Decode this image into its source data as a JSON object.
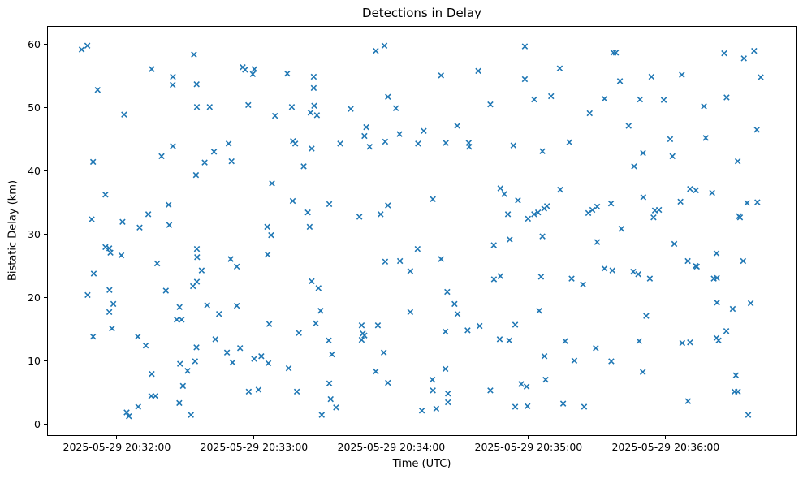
{
  "figure": {
    "title": "Detections in Delay",
    "xlabel": "Time (UTC)",
    "ylabel": "Bistatic Delay (km)"
  },
  "chart_data": {
    "type": "scatter",
    "title": "Detections in Delay",
    "xlabel": "Time (UTC)",
    "ylabel": "Bistatic Delay (km)",
    "legend": "none",
    "grid": false,
    "marker": "x",
    "marker_color": "#1f77b4",
    "x_unit": "seconds relative to 2025-05-29 20:32:00 UTC",
    "xlim": [
      -30.5,
      297.2
    ],
    "ylim": [
      -1.8,
      62.9
    ],
    "xticks": {
      "values": [
        0,
        60,
        120,
        180,
        240
      ],
      "labels": [
        "2025-05-29 20:32:00",
        "2025-05-29 20:33:00",
        "2025-05-29 20:34:00",
        "2025-05-29 20:35:00",
        "2025-05-29 20:36:00"
      ]
    },
    "yticks": {
      "values": [
        0,
        10,
        20,
        30,
        40,
        50,
        60
      ],
      "labels": [
        "0",
        "10",
        "20",
        "30",
        "40",
        "50",
        "60"
      ]
    },
    "points": [
      [
        -15.7,
        59.3
      ],
      [
        -13.2,
        59.9
      ],
      [
        15,
        56.2
      ],
      [
        24.3,
        55.0
      ],
      [
        24.2,
        53.7
      ],
      [
        -8.7,
        52.9
      ],
      [
        2.9,
        49.0
      ],
      [
        24.3,
        44.0
      ],
      [
        19.3,
        42.4
      ],
      [
        -10.7,
        41.5
      ],
      [
        33.5,
        58.5
      ],
      [
        54.9,
        56.5
      ],
      [
        55.9,
        56.1
      ],
      [
        60,
        56.2
      ],
      [
        59.3,
        55.4
      ],
      [
        74.4,
        55.5
      ],
      [
        86,
        55.0
      ],
      [
        86,
        53.2
      ],
      [
        34.7,
        53.8
      ],
      [
        34.8,
        50.2
      ],
      [
        40.4,
        50.2
      ],
      [
        57.3,
        50.5
      ],
      [
        76.4,
        50.2
      ],
      [
        69,
        48.8
      ],
      [
        86.2,
        50.4
      ],
      [
        84.6,
        49.3
      ],
      [
        87.4,
        48.9
      ],
      [
        76.9,
        44.8
      ],
      [
        77.9,
        44.4
      ],
      [
        85.1,
        43.6
      ],
      [
        48.7,
        44.4
      ],
      [
        42.3,
        43.1
      ],
      [
        97.6,
        44.4
      ],
      [
        38.2,
        41.4
      ],
      [
        50,
        41.6
      ],
      [
        117,
        59.9
      ],
      [
        113.2,
        59.1
      ],
      [
        141.8,
        55.2
      ],
      [
        158.1,
        55.9
      ],
      [
        118.5,
        51.8
      ],
      [
        122,
        50.0
      ],
      [
        102.2,
        49.9
      ],
      [
        163.4,
        50.6
      ],
      [
        109,
        47.0
      ],
      [
        108.2,
        45.6
      ],
      [
        148.9,
        47.2
      ],
      [
        134.2,
        46.4
      ],
      [
        123.6,
        45.9
      ],
      [
        117.3,
        44.7
      ],
      [
        110.5,
        43.9
      ],
      [
        131.7,
        44.4
      ],
      [
        143.9,
        44.5
      ],
      [
        153.9,
        44.5
      ],
      [
        154.1,
        43.9
      ],
      [
        178.5,
        59.8
      ],
      [
        217.3,
        58.8
      ],
      [
        218.4,
        58.8
      ],
      [
        193.8,
        56.3
      ],
      [
        178.5,
        54.6
      ],
      [
        220.2,
        54.3
      ],
      [
        190,
        51.9
      ],
      [
        182.6,
        51.4
      ],
      [
        213.4,
        51.5
      ],
      [
        229,
        51.4
      ],
      [
        206.9,
        49.2
      ],
      [
        224,
        47.2
      ],
      [
        173.5,
        44.1
      ],
      [
        198,
        44.6
      ],
      [
        186.2,
        43.2
      ],
      [
        230.3,
        42.9
      ],
      [
        265.9,
        58.7
      ],
      [
        274.5,
        57.9
      ],
      [
        279,
        59.1
      ],
      [
        234,
        55.0
      ],
      [
        247.3,
        55.3
      ],
      [
        281.9,
        54.9
      ],
      [
        239.4,
        51.3
      ],
      [
        257,
        50.3
      ],
      [
        266.9,
        51.7
      ],
      [
        280.2,
        46.6
      ],
      [
        242.2,
        45.1
      ],
      [
        257.8,
        45.3
      ],
      [
        243.2,
        42.4
      ],
      [
        271.8,
        41.6
      ],
      [
        34.4,
        39.4
      ],
      [
        -5.3,
        36.3
      ],
      [
        22.4,
        34.7
      ],
      [
        -11.3,
        32.4
      ],
      [
        13.5,
        33.2
      ],
      [
        2.2,
        32.0
      ],
      [
        9.7,
        31.1
      ],
      [
        22.7,
        31.5
      ],
      [
        -5.3,
        28.0
      ],
      [
        -3.6,
        27.8
      ],
      [
        -3.1,
        27.1
      ],
      [
        1.7,
        26.7
      ],
      [
        17.4,
        25.4
      ],
      [
        -10.4,
        23.8
      ],
      [
        -3.5,
        21.2
      ],
      [
        21.2,
        21.1
      ],
      [
        -13.1,
        20.4
      ],
      [
        81.6,
        40.8
      ],
      [
        67.7,
        38.1
      ],
      [
        76.8,
        35.3
      ],
      [
        92.8,
        34.8
      ],
      [
        83.4,
        33.5
      ],
      [
        65.6,
        31.2
      ],
      [
        84.2,
        31.2
      ],
      [
        67.3,
        29.9
      ],
      [
        34.8,
        27.7
      ],
      [
        34.9,
        26.4
      ],
      [
        36.9,
        24.3
      ],
      [
        34.8,
        22.5
      ],
      [
        49.6,
        26.1
      ],
      [
        52.3,
        24.9
      ],
      [
        65.8,
        26.8
      ],
      [
        85.1,
        22.6
      ],
      [
        88.1,
        21.5
      ],
      [
        33.1,
        21.8
      ],
      [
        138.2,
        35.6
      ],
      [
        118.5,
        34.6
      ],
      [
        106,
        32.8
      ],
      [
        115.3,
        33.2
      ],
      [
        131.5,
        27.7
      ],
      [
        117.3,
        25.7
      ],
      [
        123.8,
        25.8
      ],
      [
        128.3,
        24.2
      ],
      [
        141.8,
        26.1
      ],
      [
        144.5,
        20.9
      ],
      [
        164.9,
        28.3
      ],
      [
        165,
        22.9
      ],
      [
        226.4,
        40.8
      ],
      [
        167.8,
        37.3
      ],
      [
        169.5,
        36.4
      ],
      [
        194,
        37.1
      ],
      [
        175.5,
        35.4
      ],
      [
        230.4,
        35.9
      ],
      [
        171.1,
        33.2
      ],
      [
        179.9,
        32.5
      ],
      [
        182.6,
        33.2
      ],
      [
        184.3,
        33.5
      ],
      [
        187,
        34.1
      ],
      [
        188.2,
        34.5
      ],
      [
        206.3,
        33.4
      ],
      [
        208.1,
        33.9
      ],
      [
        210.2,
        34.4
      ],
      [
        216.3,
        34.9
      ],
      [
        220.8,
        30.9
      ],
      [
        171.9,
        29.2
      ],
      [
        186.2,
        29.7
      ],
      [
        210.2,
        28.8
      ],
      [
        213.4,
        24.6
      ],
      [
        216.9,
        24.3
      ],
      [
        226,
        24.1
      ],
      [
        228.2,
        23.7
      ],
      [
        167.8,
        23.4
      ],
      [
        185.6,
        23.3
      ],
      [
        199,
        23.0
      ],
      [
        204,
        22.1
      ],
      [
        250.9,
        37.2
      ],
      [
        253.5,
        37.0
      ],
      [
        260.6,
        36.6
      ],
      [
        246.7,
        35.2
      ],
      [
        275.9,
        35.0
      ],
      [
        280.4,
        35.1
      ],
      [
        235.5,
        33.8
      ],
      [
        237.3,
        33.9
      ],
      [
        272.4,
        32.9
      ],
      [
        272.8,
        32.7
      ],
      [
        234.9,
        32.7
      ],
      [
        244,
        28.5
      ],
      [
        262.5,
        27.0
      ],
      [
        249.9,
        25.8
      ],
      [
        253.3,
        25.0
      ],
      [
        253.9,
        24.9
      ],
      [
        274.2,
        25.8
      ],
      [
        233.3,
        23.0
      ],
      [
        261.3,
        23.0
      ],
      [
        262.7,
        23.1
      ],
      [
        -10.7,
        13.8
      ],
      [
        -3.6,
        17.7
      ],
      [
        -1.8,
        19.0
      ],
      [
        -2.4,
        15.1
      ],
      [
        8.9,
        13.8
      ],
      [
        12.4,
        12.4
      ],
      [
        27.2,
        18.5
      ],
      [
        26,
        16.5
      ],
      [
        28.1,
        16.5
      ],
      [
        27.4,
        9.5
      ],
      [
        30.7,
        8.4
      ],
      [
        15,
        7.9
      ],
      [
        28.7,
        6.0
      ],
      [
        14.8,
        4.4
      ],
      [
        16.6,
        4.4
      ],
      [
        27.1,
        3.3
      ],
      [
        9.1,
        2.7
      ],
      [
        4,
        1.8
      ],
      [
        5,
        1.2
      ],
      [
        32.2,
        1.4
      ],
      [
        39.3,
        18.8
      ],
      [
        44.5,
        17.4
      ],
      [
        52.3,
        18.7
      ],
      [
        66.5,
        15.8
      ],
      [
        89,
        17.9
      ],
      [
        86.9,
        15.9
      ],
      [
        79.5,
        14.4
      ],
      [
        42.9,
        13.4
      ],
      [
        34.6,
        12.1
      ],
      [
        53.7,
        12.0
      ],
      [
        48,
        11.3
      ],
      [
        34,
        9.9
      ],
      [
        50.4,
        9.7
      ],
      [
        59.9,
        10.3
      ],
      [
        63,
        10.7
      ],
      [
        66.1,
        9.6
      ],
      [
        75,
        8.8
      ],
      [
        57.5,
        5.1
      ],
      [
        61.8,
        5.4
      ],
      [
        78.6,
        5.1
      ],
      [
        92.8,
        6.4
      ],
      [
        93.4,
        3.9
      ],
      [
        95.8,
        2.6
      ],
      [
        89.5,
        1.4
      ],
      [
        92.6,
        13.2
      ],
      [
        94,
        11.0
      ],
      [
        147.7,
        19.0
      ],
      [
        128.3,
        17.7
      ],
      [
        149,
        17.4
      ],
      [
        107,
        15.6
      ],
      [
        114.1,
        15.6
      ],
      [
        107.5,
        14.3
      ],
      [
        108.2,
        14.0
      ],
      [
        107,
        13.3
      ],
      [
        143.7,
        14.6
      ],
      [
        153.4,
        14.8
      ],
      [
        158.7,
        15.5
      ],
      [
        116.7,
        11.3
      ],
      [
        113.2,
        8.3
      ],
      [
        118.5,
        6.5
      ],
      [
        143.7,
        8.7
      ],
      [
        138,
        7.0
      ],
      [
        138.2,
        5.3
      ],
      [
        144.8,
        4.8
      ],
      [
        144.8,
        3.4
      ],
      [
        139.7,
        2.4
      ],
      [
        133.4,
        2.1
      ],
      [
        163.4,
        5.3
      ],
      [
        184.8,
        17.9
      ],
      [
        174.3,
        15.7
      ],
      [
        167.5,
        13.4
      ],
      [
        171.7,
        13.2
      ],
      [
        196.2,
        13.1
      ],
      [
        209.6,
        12.0
      ],
      [
        228.6,
        13.1
      ],
      [
        187.1,
        10.7
      ],
      [
        200.2,
        10.0
      ],
      [
        216.4,
        9.9
      ],
      [
        230.2,
        8.2
      ],
      [
        187.6,
        7.0
      ],
      [
        176.9,
        6.3
      ],
      [
        179.3,
        5.9
      ],
      [
        174.3,
        2.7
      ],
      [
        179.7,
        2.8
      ],
      [
        195.3,
        3.2
      ],
      [
        204.5,
        2.7
      ],
      [
        262.7,
        19.2
      ],
      [
        269.6,
        18.2
      ],
      [
        277.5,
        19.1
      ],
      [
        231.7,
        17.1
      ],
      [
        266.8,
        14.7
      ],
      [
        262.5,
        13.6
      ],
      [
        263.4,
        13.2
      ],
      [
        247.5,
        12.8
      ],
      [
        250.9,
        12.9
      ],
      [
        271,
        7.7
      ],
      [
        270.4,
        5.1
      ],
      [
        271.9,
        5.1
      ],
      [
        250,
        3.6
      ],
      [
        276.4,
        1.4
      ]
    ]
  }
}
